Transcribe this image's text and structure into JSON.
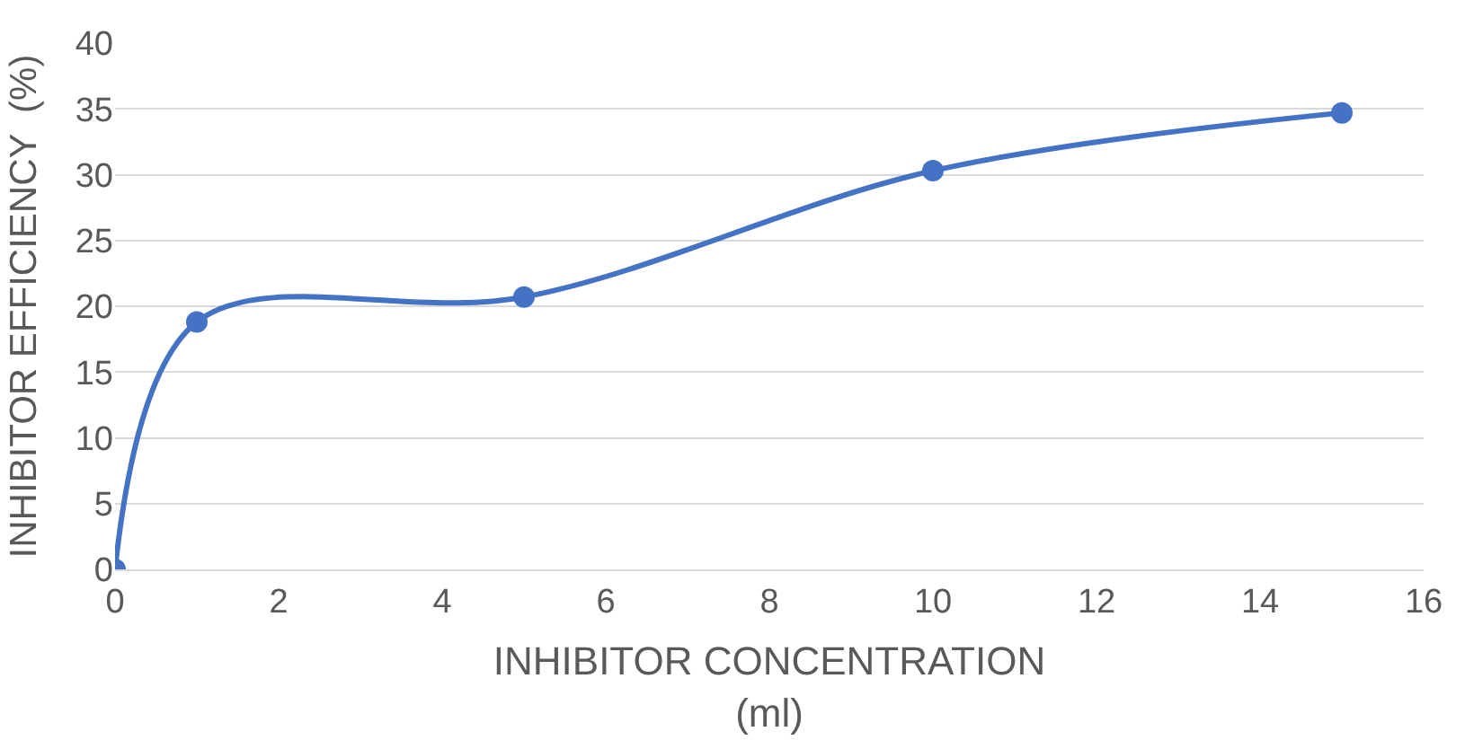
{
  "chart_data": {
    "type": "line",
    "xlabel": "INHIBITOR CONCENTRATION (ml)",
    "ylabel": "INHIBITOR EFFICIENCY  (%)",
    "x": [
      0,
      1,
      5,
      10,
      15
    ],
    "series": [
      {
        "color": "#4472c4",
        "values": [
          0,
          18.8,
          20.7,
          30.3,
          34.7
        ]
      }
    ],
    "xlim": [
      0,
      16
    ],
    "xticks": [
      0,
      2,
      4,
      6,
      8,
      10,
      12,
      14,
      16
    ],
    "ylim": [
      0,
      40
    ],
    "yticks": [
      0,
      5,
      10,
      15,
      20,
      25,
      30,
      35,
      40
    ],
    "grid": "y",
    "marker": "circle",
    "line_style": "solid"
  }
}
